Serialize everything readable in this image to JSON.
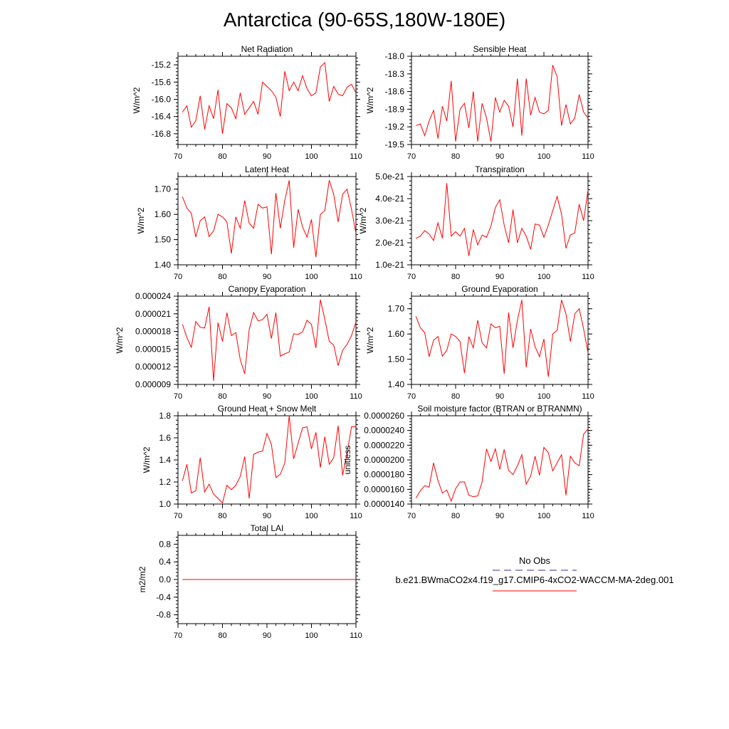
{
  "figure": {
    "title": "Antarctica (90-65S,180W-180E)"
  },
  "legend": {
    "obs_label": "No Obs",
    "model_label": "b.e21.BWmaCO2x4.f19_g17.CMIP6-4xCO2-WACCM-MA-2deg.001",
    "obs_color": "#3a2f8f",
    "model_color": "#ff0000"
  },
  "colors": {
    "line": "#ff0000",
    "axis": "#000000"
  },
  "chart_data": [
    {
      "type": "line",
      "title": "Net Radiation",
      "xlabel": "",
      "ylabel": "W/m^2",
      "xlim": [
        70,
        110
      ],
      "ylim": [
        -17.05,
        -15.0
      ],
      "xticks": [
        70,
        80,
        90,
        100,
        110
      ],
      "yticks": [
        -16.8,
        -16.4,
        -16.0,
        -15.6,
        -15.2
      ],
      "yticklabels": [
        "-16.8",
        "-16.4",
        "-16.0",
        "-15.6",
        "-15.2"
      ],
      "x_start": 71,
      "values": [
        -16.3,
        -16.15,
        -16.65,
        -16.5,
        -15.92,
        -16.7,
        -16.15,
        -16.45,
        -15.78,
        -16.8,
        -16.1,
        -16.2,
        -16.45,
        -15.85,
        -16.35,
        -16.2,
        -16.05,
        -16.35,
        -15.6,
        -15.7,
        -15.8,
        -15.95,
        -16.4,
        -15.35,
        -15.8,
        -15.6,
        -15.8,
        -15.45,
        -15.75,
        -15.92,
        -15.85,
        -15.25,
        -15.15,
        -16.05,
        -15.7,
        -15.88,
        -15.92,
        -15.72,
        -15.65,
        -15.85
      ]
    },
    {
      "type": "line",
      "title": "Sensible Heat",
      "xlabel": "",
      "ylabel": "W/m^2",
      "xlim": [
        70,
        110
      ],
      "ylim": [
        -19.5,
        -18.0
      ],
      "xticks": [
        70,
        80,
        90,
        100,
        110
      ],
      "yticks": [
        -19.5,
        -19.2,
        -18.9,
        -18.6,
        -18.3,
        -18.0
      ],
      "yticklabels": [
        "-19.5",
        "-19.2",
        "-18.9",
        "-18.6",
        "-18.3",
        "-18.0"
      ],
      "x_start": 71,
      "values": [
        -19.18,
        -19.15,
        -19.35,
        -19.1,
        -18.92,
        -19.4,
        -18.85,
        -19.1,
        -18.42,
        -19.45,
        -18.9,
        -18.8,
        -19.22,
        -18.6,
        -19.45,
        -18.8,
        -19.05,
        -19.45,
        -18.7,
        -18.95,
        -18.75,
        -18.85,
        -19.2,
        -18.38,
        -19.35,
        -18.38,
        -19.0,
        -18.7,
        -18.95,
        -18.98,
        -18.92,
        -18.15,
        -18.35,
        -19.18,
        -18.82,
        -19.15,
        -19.05,
        -18.65,
        -18.95,
        -19.05
      ]
    },
    {
      "type": "line",
      "title": "Latent Heat",
      "xlabel": "",
      "ylabel": "W/m^2",
      "xlim": [
        70,
        110
      ],
      "ylim": [
        1.4,
        1.75
      ],
      "xticks": [
        70,
        80,
        90,
        100,
        110
      ],
      "yticks": [
        1.4,
        1.5,
        1.6,
        1.7
      ],
      "yticklabels": [
        "1.40",
        "1.50",
        "1.60",
        "1.70"
      ],
      "x_start": 71,
      "values": [
        1.67,
        1.625,
        1.605,
        1.51,
        1.575,
        1.59,
        1.512,
        1.535,
        1.6,
        1.59,
        1.57,
        1.445,
        1.59,
        1.545,
        1.655,
        1.565,
        1.545,
        1.64,
        1.625,
        1.63,
        1.442,
        1.685,
        1.545,
        1.655,
        1.735,
        1.468,
        1.62,
        1.55,
        1.51,
        1.58,
        1.43,
        1.6,
        1.615,
        1.735,
        1.68,
        1.57,
        1.68,
        1.7,
        1.62,
        1.525
      ]
    },
    {
      "type": "line",
      "title": "Transpiration",
      "xlabel": "",
      "ylabel": "W/m^2",
      "xlim": [
        70,
        110
      ],
      "ylim": [
        1.0,
        5.0
      ],
      "xticks": [
        70,
        80,
        90,
        100,
        110
      ],
      "yticks": [
        1.0,
        2.0,
        3.0,
        4.0,
        5.0
      ],
      "yticklabels": [
        "1.0e-21",
        "2.0e-21",
        "3.0e-21",
        "4.0e-21",
        "5.0e-21"
      ],
      "value_scale": "1e-21",
      "x_start": 71,
      "values": [
        2.2,
        2.3,
        2.55,
        2.4,
        2.1,
        2.9,
        2.2,
        4.7,
        2.3,
        2.5,
        2.3,
        2.65,
        1.4,
        2.6,
        1.9,
        2.35,
        2.25,
        2.75,
        3.6,
        3.95,
        2.8,
        2.0,
        3.5,
        2.0,
        2.65,
        2.3,
        1.7,
        2.85,
        2.8,
        2.25,
        2.8,
        3.45,
        4.1,
        3.3,
        1.75,
        2.35,
        2.45,
        3.75,
        3.0,
        4.4
      ]
    },
    {
      "type": "line",
      "title": "Canopy Evaporation",
      "xlabel": "",
      "ylabel": "W/m^2",
      "xlim": [
        70,
        110
      ],
      "ylim": [
        9e-06,
        2.4e-05
      ],
      "xticks": [
        70,
        80,
        90,
        100,
        110
      ],
      "yticks": [
        9e-06,
        1.2e-05,
        1.5e-05,
        1.8e-05,
        2.1e-05,
        2.4e-05
      ],
      "yticklabels": [
        "0.000009",
        "0.000012",
        "0.000015",
        "0.000018",
        "0.000021",
        "0.000024"
      ],
      "x_start": 71,
      "values": [
        1.92e-05,
        1.7e-05,
        1.53e-05,
        1.97e-05,
        1.87e-05,
        1.86e-05,
        2.22e-05,
        9.6e-06,
        1.95e-05,
        1.63e-05,
        2.12e-05,
        1.73e-05,
        1.78e-05,
        1.32e-05,
        1.08e-05,
        1.83e-05,
        2.12e-05,
        1.98e-05,
        2e-05,
        2.09e-05,
        1.68e-05,
        2.12e-05,
        1.38e-05,
        1.42e-05,
        1.45e-05,
        1.76e-05,
        1.75e-05,
        1.79e-05,
        1.99e-05,
        1.92e-05,
        1.52e-05,
        2.34e-05,
        2.01e-05,
        1.63e-05,
        1.57e-05,
        1.22e-05,
        1.48e-05,
        1.58e-05,
        1.73e-05,
        1.96e-05
      ]
    },
    {
      "type": "line",
      "title": "Ground Evaporation",
      "xlabel": "",
      "ylabel": "W/m^2",
      "xlim": [
        70,
        110
      ],
      "ylim": [
        1.4,
        1.75
      ],
      "xticks": [
        70,
        80,
        90,
        100,
        110
      ],
      "yticks": [
        1.4,
        1.5,
        1.6,
        1.7
      ],
      "yticklabels": [
        "1.40",
        "1.50",
        "1.60",
        "1.70"
      ],
      "x_start": 71,
      "values": [
        1.67,
        1.625,
        1.605,
        1.51,
        1.575,
        1.59,
        1.512,
        1.535,
        1.6,
        1.59,
        1.57,
        1.445,
        1.59,
        1.545,
        1.655,
        1.565,
        1.545,
        1.64,
        1.625,
        1.63,
        1.442,
        1.685,
        1.545,
        1.655,
        1.735,
        1.468,
        1.62,
        1.55,
        1.51,
        1.58,
        1.43,
        1.6,
        1.615,
        1.735,
        1.68,
        1.57,
        1.68,
        1.7,
        1.62,
        1.525
      ]
    },
    {
      "type": "line",
      "title": "Ground Heat + Snow Melt",
      "xlabel": "",
      "ylabel": "W/m^2",
      "xlim": [
        70,
        110
      ],
      "ylim": [
        1.0,
        1.8
      ],
      "xticks": [
        70,
        80,
        90,
        100,
        110
      ],
      "yticks": [
        1.0,
        1.2,
        1.4,
        1.6,
        1.8
      ],
      "yticklabels": [
        "1.0",
        "1.2",
        "1.4",
        "1.6",
        "1.8"
      ],
      "x_start": 71,
      "values": [
        1.21,
        1.36,
        1.1,
        1.12,
        1.42,
        1.11,
        1.18,
        1.09,
        1.05,
        1.01,
        1.17,
        1.13,
        1.17,
        1.25,
        1.43,
        1.05,
        1.45,
        1.47,
        1.48,
        1.64,
        1.54,
        1.24,
        1.27,
        1.37,
        1.8,
        1.41,
        1.55,
        1.69,
        1.7,
        1.5,
        1.65,
        1.33,
        1.61,
        1.36,
        1.42,
        1.71,
        1.26,
        1.46,
        1.7,
        1.7
      ]
    },
    {
      "type": "line",
      "title": "Soil moisture factor (BTRAN or BTRANMN)",
      "xlabel": "",
      "ylabel": "unitless",
      "xlim": [
        70,
        110
      ],
      "ylim": [
        1.4e-05,
        2.6e-05
      ],
      "xticks": [
        70,
        80,
        90,
        100,
        110
      ],
      "yticks": [
        1.4e-05,
        1.6e-05,
        1.8e-05,
        2e-05,
        2.2e-05,
        2.4e-05,
        2.6e-05
      ],
      "yticklabels": [
        "0.0000140",
        "0.0000160",
        "0.0000180",
        "0.0000200",
        "0.0000220",
        "0.0000240",
        "0.0000260"
      ],
      "x_start": 71,
      "values": [
        1.48e-05,
        1.58e-05,
        1.65e-05,
        1.63e-05,
        1.96e-05,
        1.72e-05,
        1.55e-05,
        1.59e-05,
        1.44e-05,
        1.61e-05,
        1.7e-05,
        1.7e-05,
        1.52e-05,
        1.5e-05,
        1.51e-05,
        1.7e-05,
        2.15e-05,
        1.98e-05,
        2.15e-05,
        1.87e-05,
        2.14e-05,
        1.86e-05,
        1.8e-05,
        1.92e-05,
        2.07e-05,
        1.67e-05,
        1.78e-05,
        2.05e-05,
        1.79e-05,
        2.17e-05,
        2.1e-05,
        1.85e-05,
        1.96e-05,
        2.07e-05,
        1.52e-05,
        2.05e-05,
        1.96e-05,
        1.92e-05,
        2.35e-05,
        2.42e-05
      ]
    },
    {
      "type": "line",
      "title": "Total LAI",
      "xlabel": "",
      "ylabel": "m2/m2",
      "xlim": [
        70,
        110
      ],
      "ylim": [
        -1.0,
        1.0
      ],
      "xticks": [
        70,
        80,
        90,
        100,
        110
      ],
      "yticks": [
        -0.8,
        -0.4,
        0.0,
        0.4,
        0.8
      ],
      "yticklabels": [
        "-0.8",
        "-0.4",
        "0.0",
        "0.4",
        "0.8"
      ],
      "x_start": 71,
      "values": [
        0,
        0,
        0,
        0,
        0,
        0,
        0,
        0,
        0,
        0,
        0,
        0,
        0,
        0,
        0,
        0,
        0,
        0,
        0,
        0,
        0,
        0,
        0,
        0,
        0,
        0,
        0,
        0,
        0,
        0,
        0,
        0,
        0,
        0,
        0,
        0,
        0,
        0,
        0,
        0
      ]
    }
  ]
}
